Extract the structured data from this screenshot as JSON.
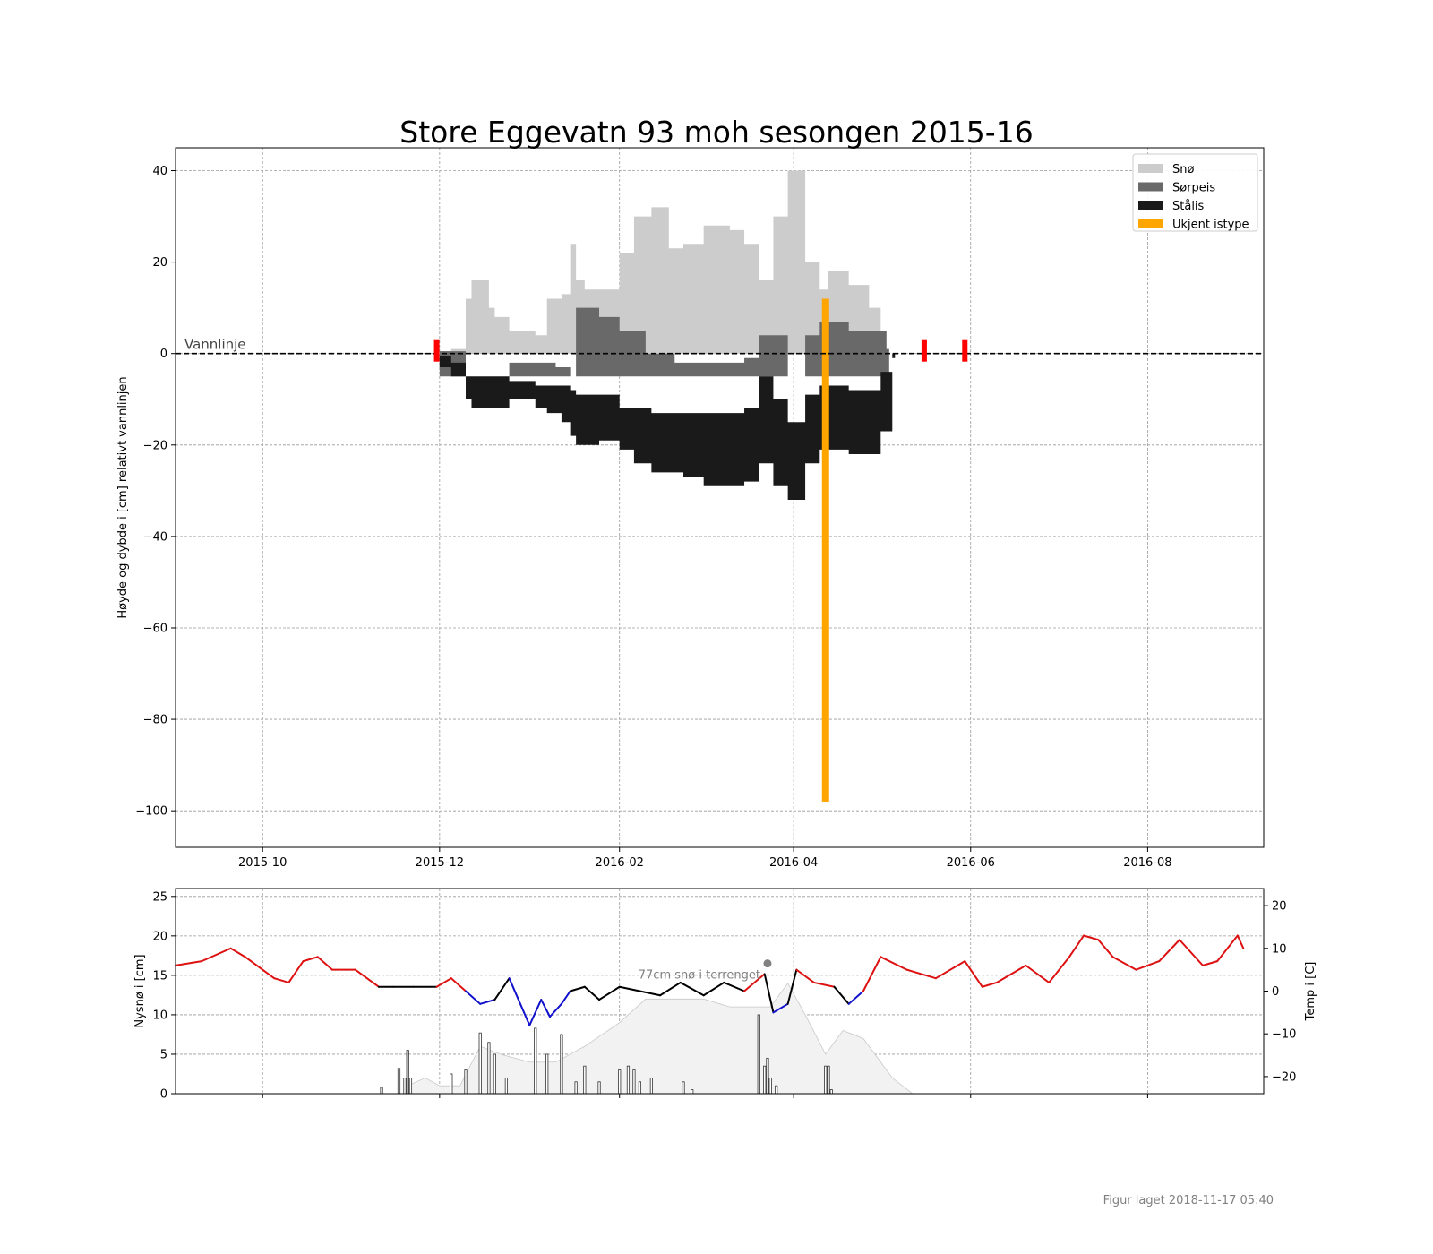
{
  "chart_data": [
    {
      "type": "area",
      "title": "Store Eggevatn 93 moh sesongen 2015-16",
      "ylabel": "Høyde og dybde i [cm] relativt vannlinjen",
      "xlabel": "",
      "xlim": [
        "2015-09-01",
        "2016-09-10"
      ],
      "ylim": [
        -108,
        45
      ],
      "x_ticks": [
        "2015-10",
        "2015-12",
        "2016-02",
        "2016-04",
        "2016-06",
        "2016-08"
      ],
      "y_ticks": [
        40,
        20,
        0,
        -20,
        -40,
        -60,
        -80,
        -100
      ],
      "grid": true,
      "legend_position": "top-right",
      "legend": [
        {
          "name": "Snø",
          "color": "#cccccc"
        },
        {
          "name": "Sørpeis",
          "color": "#696969"
        },
        {
          "name": "Stålis",
          "color": "#1a1a1a"
        },
        {
          "name": "Ukjent istype",
          "color": "#ffa500"
        }
      ],
      "water_line_label": "Vannlinje",
      "water_line_y": 0,
      "ice_events": [
        "2015-11-30",
        "2016-05-16",
        "2016-05-30"
      ],
      "series": [
        {
          "name": "Snø",
          "color": "#cccccc",
          "x": [
            "2015-12-01",
            "2015-12-05",
            "2015-12-10",
            "2015-12-12",
            "2015-12-18",
            "2015-12-20",
            "2015-12-25",
            "2016-01-03",
            "2016-01-07",
            "2016-01-12",
            "2016-01-15",
            "2016-01-17",
            "2016-01-20",
            "2016-01-25",
            "2016-02-01",
            "2016-02-06",
            "2016-02-12",
            "2016-02-18",
            "2016-02-23",
            "2016-03-01",
            "2016-03-10",
            "2016-03-15",
            "2016-03-20",
            "2016-03-25",
            "2016-03-30",
            "2016-04-05",
            "2016-04-10",
            "2016-04-13",
            "2016-04-20",
            "2016-04-27",
            "2016-05-01"
          ],
          "top": [
            0.5,
            1,
            12,
            16,
            10,
            8,
            5,
            4,
            12,
            13,
            24,
            16,
            14,
            14,
            22,
            30,
            32,
            23,
            24,
            28,
            27,
            24,
            16,
            30,
            40,
            20,
            14,
            18,
            15,
            10,
            1
          ]
        },
        {
          "name": "Sørpeis",
          "color": "#696969",
          "x": [
            "2015-12-01",
            "2015-12-10",
            "2015-12-20",
            "2015-12-25",
            "2016-01-03",
            "2016-01-10",
            "2016-01-15",
            "2016-01-17",
            "2016-01-25",
            "2016-02-01",
            "2016-02-10",
            "2016-02-20",
            "2016-03-01",
            "2016-03-10",
            "2016-03-15",
            "2016-03-20",
            "2016-03-30",
            "2016-04-05",
            "2016-04-10",
            "2016-04-20",
            "2016-04-27",
            "2016-05-03"
          ],
          "top": [
            0.5,
            -5,
            -5,
            -2,
            -2,
            -3,
            -5,
            10,
            8,
            5,
            0,
            -2,
            -2,
            -2,
            -1,
            4,
            -5,
            4,
            7,
            5,
            5,
            1
          ]
        },
        {
          "name": "Stålis",
          "color": "#1a1a1a",
          "x": [
            "2015-12-01",
            "2015-12-05",
            "2015-12-10",
            "2015-12-12",
            "2015-12-20",
            "2015-12-25",
            "2016-01-03",
            "2016-01-07",
            "2016-01-12",
            "2016-01-15",
            "2016-01-17",
            "2016-01-25",
            "2016-02-01",
            "2016-02-06",
            "2016-02-12",
            "2016-02-18",
            "2016-02-23",
            "2016-03-01",
            "2016-03-10",
            "2016-03-15",
            "2016-03-20",
            "2016-03-25",
            "2016-03-30",
            "2016-04-05",
            "2016-04-10",
            "2016-04-20",
            "2016-04-27",
            "2016-05-01",
            "2016-05-05"
          ],
          "top": [
            -0.5,
            -2,
            -5,
            -5,
            -5,
            -6,
            -7,
            -7,
            -7,
            -8,
            -9,
            -9,
            -12,
            -12,
            -13,
            -13,
            -13,
            -13,
            -13,
            -12,
            -5,
            -10,
            -15,
            -9,
            -7,
            -8,
            -8,
            -4,
            0
          ],
          "bottom": [
            -3,
            -5,
            -10,
            -12,
            -12,
            -10,
            -12,
            -13,
            -15,
            -18,
            -20,
            -19,
            -21,
            -24,
            -26,
            -26,
            -27,
            -29,
            -29,
            -28,
            -24,
            -29,
            -32,
            -24,
            -21,
            -22,
            -22,
            -17,
            -1
          ]
        },
        {
          "name": "Ukjent istype",
          "color": "#ffa500",
          "x": [
            "2016-04-12"
          ],
          "top": [
            12
          ],
          "bottom": [
            -98
          ]
        }
      ]
    },
    {
      "type": "bar",
      "ylabel": "Nysnø i [cm]",
      "y2label": "Temp i [C]",
      "ylim": [
        0,
        26
      ],
      "y2lim": [
        -24,
        24
      ],
      "y_ticks": [
        0,
        5,
        10,
        15,
        20,
        25
      ],
      "y2_ticks": [
        20,
        10,
        0,
        -10,
        -20
      ],
      "xlim": [
        "2015-09-01",
        "2016-09-10"
      ],
      "annotation": "77cm snø i terrenget",
      "annotation_x": "2016-03-23",
      "annotation_y": 16.5,
      "temp_colors": {
        "warm": "#dd1111",
        "near_zero": "#000000",
        "cold": "#1111cc"
      },
      "temperature": {
        "x": [
          "2015-09-01",
          "2015-09-10",
          "2015-09-20",
          "2015-09-25",
          "2015-10-05",
          "2015-10-10",
          "2015-10-15",
          "2015-10-20",
          "2015-10-25",
          "2015-11-02",
          "2015-11-10",
          "2015-11-15",
          "2015-11-22",
          "2015-11-30",
          "2015-12-05",
          "2015-12-10",
          "2015-12-15",
          "2015-12-20",
          "2015-12-25",
          "2016-01-01",
          "2016-01-05",
          "2016-01-08",
          "2016-01-12",
          "2016-01-15",
          "2016-01-20",
          "2016-01-25",
          "2016-02-01",
          "2016-02-08",
          "2016-02-15",
          "2016-02-22",
          "2016-03-01",
          "2016-03-08",
          "2016-03-15",
          "2016-03-22",
          "2016-03-25",
          "2016-03-30",
          "2016-04-02",
          "2016-04-08",
          "2016-04-15",
          "2016-04-20",
          "2016-04-25",
          "2016-05-01",
          "2016-05-10",
          "2016-05-20",
          "2016-05-30",
          "2016-06-05",
          "2016-06-10",
          "2016-06-20",
          "2016-06-28",
          "2016-07-05",
          "2016-07-10",
          "2016-07-15",
          "2016-07-20",
          "2016-07-28",
          "2016-08-05",
          "2016-08-12",
          "2016-08-20",
          "2016-08-25",
          "2016-09-01",
          "2016-09-03"
        ],
        "y": [
          6,
          7,
          10,
          8,
          3,
          2,
          7,
          8,
          5,
          5,
          1,
          1,
          1,
          1,
          3,
          0,
          -3,
          -2,
          3,
          -8,
          -2,
          -6,
          -3,
          0,
          1,
          -2,
          1,
          0,
          -1,
          2,
          -1,
          2,
          0,
          4,
          -5,
          -3,
          5,
          2,
          1,
          -3,
          0,
          8,
          5,
          3,
          7,
          1,
          2,
          6,
          2,
          8,
          13,
          12,
          8,
          5,
          7,
          12,
          6,
          7,
          13,
          10
        ]
      },
      "snow_depth": {
        "x": [
          "2015-11-20",
          "2015-11-26",
          "2015-12-01",
          "2015-12-08",
          "2015-12-15",
          "2015-12-22",
          "2016-01-01",
          "2016-01-10",
          "2016-01-20",
          "2016-02-01",
          "2016-02-10",
          "2016-02-20",
          "2016-03-01",
          "2016-03-10",
          "2016-03-18",
          "2016-03-24",
          "2016-03-30",
          "2016-04-05",
          "2016-04-12",
          "2016-04-18",
          "2016-04-25",
          "2016-05-05",
          "2016-05-12"
        ],
        "y": [
          1,
          2,
          1,
          1,
          6,
          5,
          4,
          4,
          6,
          9,
          12,
          12,
          12,
          11,
          11,
          11,
          14,
          10,
          5,
          8,
          7,
          2,
          0
        ]
      },
      "new_snow": {
        "x": [
          "2015-11-11",
          "2015-11-17",
          "2015-11-19",
          "2015-11-20",
          "2015-11-21",
          "2015-12-05",
          "2015-12-10",
          "2015-12-15",
          "2015-12-18",
          "2015-12-20",
          "2015-12-24",
          "2016-01-03",
          "2016-01-07",
          "2016-01-12",
          "2016-01-17",
          "2016-01-20",
          "2016-01-25",
          "2016-02-01",
          "2016-02-04",
          "2016-02-06",
          "2016-02-08",
          "2016-02-12",
          "2016-02-23",
          "2016-02-26",
          "2016-03-20",
          "2016-03-22",
          "2016-03-23",
          "2016-03-24",
          "2016-03-26",
          "2016-04-12",
          "2016-04-13",
          "2016-04-14"
        ],
        "y": [
          0.8,
          3.2,
          2,
          5.5,
          2,
          2.5,
          3,
          7.7,
          6.5,
          5,
          2,
          8.3,
          5,
          7.5,
          1.5,
          3.5,
          1.5,
          3,
          3.5,
          3,
          1.5,
          2,
          1.5,
          0.5,
          10,
          3.5,
          4.5,
          2,
          1,
          3.5,
          3.5,
          0.5
        ]
      }
    }
  ],
  "footer": "Figur laget 2018-11-17 05:40"
}
